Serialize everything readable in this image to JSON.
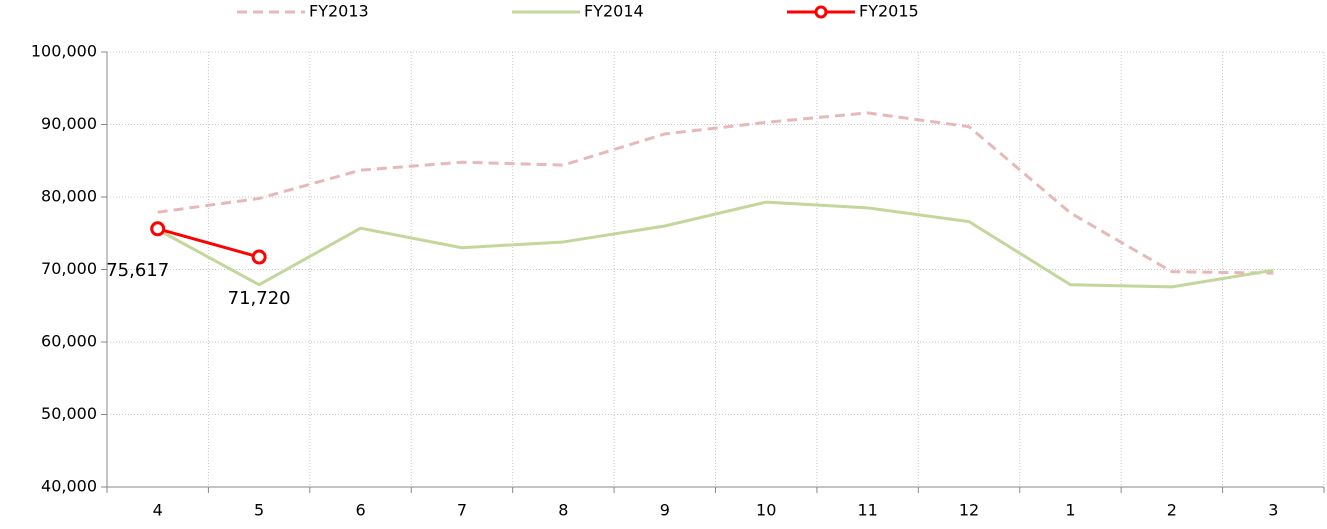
{
  "chart_data": {
    "type": "line",
    "categories": [
      "4",
      "5",
      "6",
      "7",
      "8",
      "9",
      "10",
      "11",
      "12",
      "1",
      "2",
      "3"
    ],
    "series": [
      {
        "name": "FY2013",
        "color": "#e6b9b8",
        "dashed": true,
        "values": [
          77900,
          79800,
          83700,
          84800,
          84400,
          88700,
          90300,
          91600,
          89700,
          77800,
          69700,
          69500
        ]
      },
      {
        "name": "FY2014",
        "color": "#c3d69b",
        "dashed": false,
        "values": [
          75500,
          67900,
          75700,
          73000,
          73800,
          76000,
          79300,
          78500,
          76600,
          67900,
          67600,
          69900
        ]
      },
      {
        "name": "FY2015",
        "color": "#ff0000",
        "dashed": false,
        "marker": "circle",
        "values": [
          75617,
          71720,
          null,
          null,
          null,
          null,
          null,
          null,
          null,
          null,
          null,
          null
        ],
        "value_labels": [
          "75,617",
          "71,720",
          null,
          null,
          null,
          null,
          null,
          null,
          null,
          null,
          null,
          null
        ]
      }
    ],
    "ylim": [
      40000,
      100000
    ],
    "yticks": [
      {
        "value": 40000,
        "label": "40,000"
      },
      {
        "value": 50000,
        "label": "50,000"
      },
      {
        "value": 60000,
        "label": "60,000"
      },
      {
        "value": 70000,
        "label": "70,000"
      },
      {
        "value": 80000,
        "label": "80,000"
      },
      {
        "value": 90000,
        "label": "90,000"
      },
      {
        "value": 100000,
        "label": "100,000"
      }
    ],
    "grid": true,
    "legend": "top"
  }
}
